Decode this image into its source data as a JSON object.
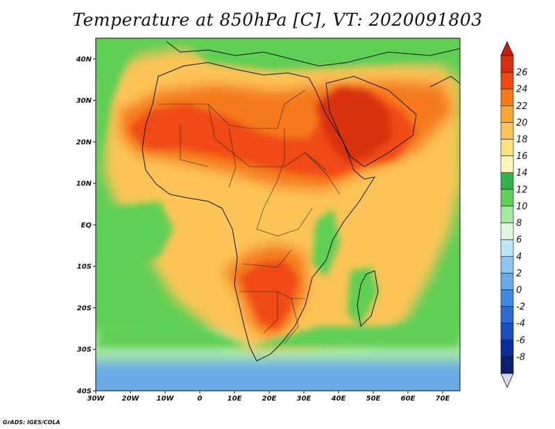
{
  "title": "Temperature at 850hPa [C], VT: 2020091803",
  "credit": "GrADS: IGES/COLA",
  "map": {
    "lon_range": [
      -30,
      75
    ],
    "lat_range": [
      -40,
      45
    ],
    "lat_ticks": [
      {
        "value": 40,
        "label": "40N"
      },
      {
        "value": 30,
        "label": "30N"
      },
      {
        "value": 20,
        "label": "20N"
      },
      {
        "value": 10,
        "label": "10N"
      },
      {
        "value": 0,
        "label": "EQ"
      },
      {
        "value": -10,
        "label": "10S"
      },
      {
        "value": -20,
        "label": "20S"
      },
      {
        "value": -30,
        "label": "30S"
      },
      {
        "value": -40,
        "label": "40S"
      }
    ],
    "lon_ticks": [
      {
        "value": -30,
        "label": "30W"
      },
      {
        "value": -20,
        "label": "20W"
      },
      {
        "value": -10,
        "label": "10W"
      },
      {
        "value": 0,
        "label": "0"
      },
      {
        "value": 10,
        "label": "10E"
      },
      {
        "value": 20,
        "label": "20E"
      },
      {
        "value": 30,
        "label": "30E"
      },
      {
        "value": 40,
        "label": "40E"
      },
      {
        "value": 50,
        "label": "50E"
      },
      {
        "value": 60,
        "label": "60E"
      },
      {
        "value": 70,
        "label": "70E"
      }
    ]
  },
  "colorbar": {
    "labels": [
      "26",
      "24",
      "22",
      "20",
      "18",
      "16",
      "14",
      "12",
      "10",
      "8",
      "6",
      "4",
      "2",
      "0",
      "-2",
      "-4",
      "-6",
      "-8"
    ],
    "colors_top_to_bottom": [
      "#d7300f",
      "#f04812",
      "#f67a1a",
      "#fba535",
      "#fcc456",
      "#fde080",
      "#fdf6b4",
      "#2fb34a",
      "#5fcf55",
      "#a3e8a0",
      "#dff7e2",
      "#bfe3f7",
      "#8ec6ef",
      "#6aa9e8",
      "#3f88df",
      "#2d6bd2",
      "#1b4fc0",
      "#0a2f9a",
      "#0b1f6a"
    ],
    "top_arrow_color": "#c61e0c",
    "bottom_arrow_color": "#d6d8f0"
  },
  "palette": {
    "ocean_cold": "#6aa9e8",
    "ocean_cool": "#a3e8a0",
    "ocean_mild": "#5fcf55",
    "land_warm": "#fcc456",
    "land_hot": "#f67a1a",
    "land_very_hot": "#f04812",
    "land_extreme": "#d7300f"
  }
}
